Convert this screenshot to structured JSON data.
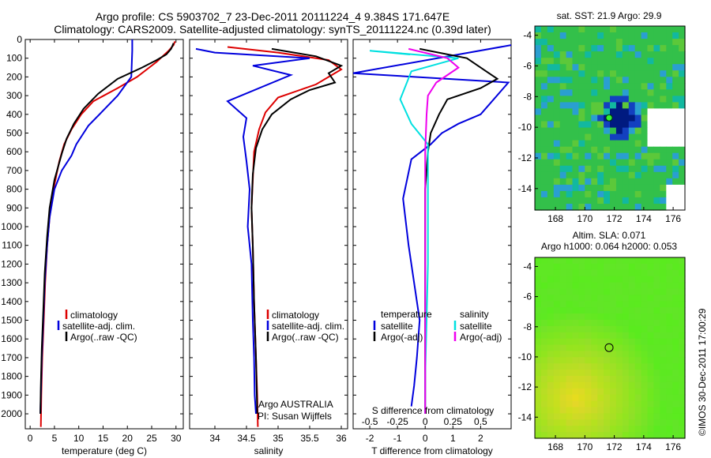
{
  "title": {
    "line1": "Argo profile: CS 5903702_7 23-Dec-2011 20111224_4 9.384S 171.647E",
    "line2": "Climatology: CARS2009. Satellite-adjusted climatology: synTS_20111224.nc (0.39d later)"
  },
  "colors": {
    "climatology": "#dd0000",
    "satellite": "#0000dd",
    "argo": "#000000",
    "argo_salinity": "#ee00ee",
    "satellite_salinity": "#00e0e0"
  },
  "depth_axis": {
    "ylim": [
      0,
      2080
    ],
    "ticks": [
      "0",
      "100",
      "200",
      "300",
      "400",
      "500",
      "600",
      "700",
      "800",
      "900",
      "1000",
      "1100",
      "1200",
      "1300",
      "1400",
      "1500",
      "1600",
      "1700",
      "1800",
      "1900",
      "2000"
    ]
  },
  "chart_data": [
    {
      "type": "line",
      "xlabel": "temperature (deg C)",
      "ylabel": "",
      "xlim": [
        -1,
        31.5
      ],
      "ylim": [
        0,
        2080
      ],
      "xticks": [
        "0",
        "5",
        "10",
        "15",
        "20",
        "25",
        "30"
      ],
      "legend": [
        "climatology",
        "satellite-adj. clim.",
        "Argo(..raw -QC)"
      ],
      "series": [
        {
          "name": "climatology",
          "x": [
            29.8,
            29.5,
            28.5,
            26,
            22,
            18,
            13,
            10.5,
            8.5,
            7,
            6,
            4.8,
            4,
            3.5,
            3.1,
            2.8,
            2.5,
            2.3,
            2.2
          ],
          "y": [
            10,
            30,
            60,
            120,
            200,
            260,
            330,
            400,
            480,
            560,
            650,
            800,
            950,
            1100,
            1300,
            1500,
            1700,
            1900,
            2070
          ]
        },
        {
          "name": "satellite-adj. clim.",
          "x": [
            21,
            21,
            20.8,
            18,
            15,
            12,
            9.5,
            8.5,
            6.5,
            5,
            4,
            3.5,
            3,
            2.7,
            2.4,
            2.2,
            2.1
          ],
          "y": [
            0,
            60,
            200,
            300,
            380,
            460,
            560,
            620,
            700,
            800,
            950,
            1100,
            1300,
            1500,
            1700,
            1900,
            2000
          ]
        },
        {
          "name": "Argo(..raw -QC)",
          "x": [
            29.5,
            29,
            28,
            26,
            23,
            18,
            14,
            11,
            9,
            7.5,
            6.5,
            5,
            4,
            3.5,
            3,
            2.7,
            2.4,
            2.2,
            2.1
          ],
          "y": [
            20,
            50,
            80,
            110,
            150,
            210,
            290,
            370,
            450,
            530,
            610,
            750,
            900,
            1050,
            1250,
            1450,
            1650,
            1850,
            2000
          ]
        }
      ]
    },
    {
      "type": "line",
      "xlabel": "salinity",
      "ylabel": "",
      "xlim": [
        33.6,
        36.1
      ],
      "ylim": [
        0,
        2080
      ],
      "xticks": [
        "34",
        "34.5",
        "35",
        "35.5",
        "36"
      ],
      "legend": [
        "climatology",
        "satellite-adj. clim.",
        "Argo(..raw -QC)"
      ],
      "series": [
        {
          "name": "climatology",
          "x": [
            34.2,
            35.0,
            35.8,
            36.0,
            35.6,
            35.0,
            34.8,
            34.7,
            34.62,
            34.6,
            34.58,
            34.6,
            34.62,
            34.65,
            34.67,
            34.68
          ],
          "y": [
            40,
            70,
            110,
            160,
            240,
            310,
            390,
            480,
            600,
            750,
            900,
            1100,
            1400,
            1700,
            1900,
            2070
          ]
        },
        {
          "name": "satellite-adj. clim.",
          "x": [
            33.7,
            34.0,
            35.5,
            34.6,
            35.2,
            34.2,
            34.5,
            34.45,
            34.5,
            34.55,
            34.52,
            34.58,
            34.6,
            34.62,
            34.63,
            34.65
          ],
          "y": [
            50,
            70,
            100,
            140,
            190,
            330,
            420,
            520,
            650,
            800,
            1000,
            1200,
            1500,
            1700,
            1900,
            2000
          ]
        },
        {
          "name": "Argo(..raw -QC)",
          "x": [
            34.9,
            35.6,
            36.0,
            35.8,
            35.9,
            35.5,
            35.2,
            34.9,
            34.75,
            34.65,
            34.6,
            34.58,
            34.6,
            34.62,
            34.65,
            34.67
          ],
          "y": [
            50,
            90,
            140,
            180,
            230,
            270,
            320,
            400,
            480,
            580,
            720,
            900,
            1100,
            1400,
            1700,
            2000
          ]
        }
      ]
    },
    {
      "type": "line",
      "xlabel": "T difference from climatology",
      "xlabel2": "S difference from climatology",
      "ylabel": "",
      "xlim": [
        -2.6,
        3.1
      ],
      "ylim": [
        0,
        2080
      ],
      "xticks": [
        "-2",
        "-1",
        "0",
        "1",
        "2"
      ],
      "xticks2": [
        "-0.5",
        "-0.25",
        "0",
        "0.25",
        "0.5"
      ],
      "legend": [
        "temperature",
        "satellite",
        "Argo(-adj)",
        "salinity",
        "satellite",
        "Argo(-adj)"
      ],
      "series": [
        {
          "name": "temperature satellite",
          "x": [
            3.1,
            -2.6,
            3.0,
            2.0,
            1.2,
            0.6,
            0.2,
            -0.5,
            -0.8,
            -0.6,
            -0.4,
            -0.2,
            -0.3,
            -0.4,
            -0.5
          ],
          "y": [
            30,
            180,
            230,
            400,
            450,
            500,
            560,
            640,
            850,
            1100,
            1300,
            1500,
            1700,
            1850,
            1960
          ]
        },
        {
          "name": "temperature Argo(-adj)",
          "x": [
            -0.2,
            1.5,
            2.2,
            2.6,
            2.0,
            0.8,
            0.5,
            0.2,
            0.1,
            0.0,
            0.0,
            0.0,
            0.0
          ],
          "y": [
            50,
            100,
            170,
            210,
            260,
            320,
            400,
            500,
            600,
            800,
            1100,
            1500,
            2000
          ]
        },
        {
          "name": "salinity satellite",
          "x": [
            -0.55,
            -2.0,
            1.2,
            -0.5,
            -0.9,
            -0.5,
            0.1,
            0.1,
            0.1,
            0.1,
            0.05,
            0.0,
            0.0
          ],
          "y": [
            80,
            60,
            100,
            170,
            320,
            450,
            560,
            700,
            900,
            1200,
            1500,
            1800,
            2000
          ]
        },
        {
          "name": "salinity Argo(-adj)",
          "x": [
            -0.6,
            0.8,
            1.2,
            0.4,
            0.1,
            0.05,
            0.0,
            0.0,
            0.0,
            0.0
          ],
          "y": [
            50,
            100,
            150,
            230,
            300,
            400,
            600,
            1000,
            1500,
            2000
          ]
        }
      ]
    }
  ],
  "annotations": {
    "org": "Argo AUSTRALIA",
    "pi": "PI: Susan Wijffels"
  },
  "maps": [
    {
      "title": "sat. SST: 21.9  Argo: 29.9",
      "title2": "",
      "xticks": [
        "168",
        "170",
        "172",
        "174",
        "176"
      ],
      "yticks": [
        "-4",
        "-6",
        "-8",
        "-10",
        "-12",
        "-14"
      ]
    },
    {
      "title": "Altim. SLA: 0.071",
      "title2": "Argo h1000: 0.064 h2000: 0.053",
      "xticks": [
        "168",
        "170",
        "172",
        "174",
        "176"
      ],
      "yticks": [
        "-4",
        "-6",
        "-8",
        "-10",
        "-12",
        "-14"
      ]
    }
  ],
  "footer": "©IMOS 30-Dec-2011 17:00:29"
}
